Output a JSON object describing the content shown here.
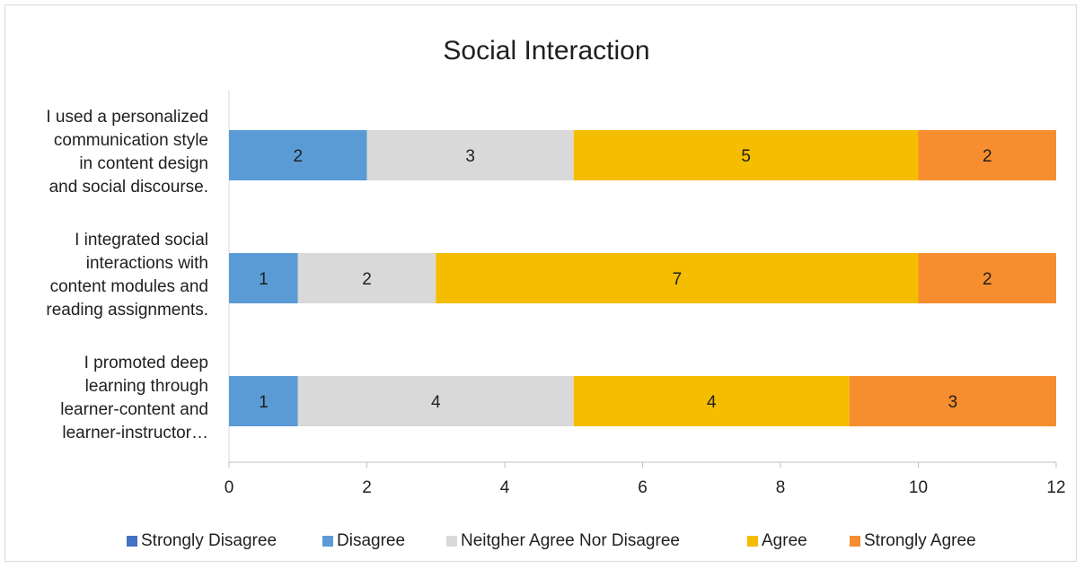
{
  "chart_data": {
    "type": "bar",
    "orientation": "horizontal",
    "stacked": true,
    "title": "Social Interaction",
    "categories": [
      [
        "I used a personalized",
        "communication style",
        "in content design",
        "and social discourse."
      ],
      [
        "I integrated social",
        "interactions with",
        "content modules and",
        "reading assignments."
      ],
      [
        "I promoted deep",
        "learning through",
        "learner-content and",
        "learner-instructor…"
      ]
    ],
    "series": [
      {
        "name": "Strongly Disagree",
        "color": "#4472c4",
        "values": [
          0,
          0,
          0
        ]
      },
      {
        "name": "Disagree",
        "color": "#5b9bd5",
        "values": [
          2,
          1,
          1
        ]
      },
      {
        "name": "Neitgher Agree Nor Disagree",
        "color": "#d9d9d9",
        "values": [
          3,
          2,
          4
        ]
      },
      {
        "name": "Agree",
        "color": "#f5bd00",
        "values": [
          5,
          7,
          4
        ]
      },
      {
        "name": "Strongly Agree",
        "color": "#f68d2e",
        "values": [
          2,
          2,
          3
        ]
      }
    ],
    "xlim": [
      0,
      12
    ],
    "xticks": [
      "0",
      "2",
      "4",
      "6",
      "8",
      "10",
      "12"
    ],
    "grid": false,
    "legend_position": "bottom"
  }
}
